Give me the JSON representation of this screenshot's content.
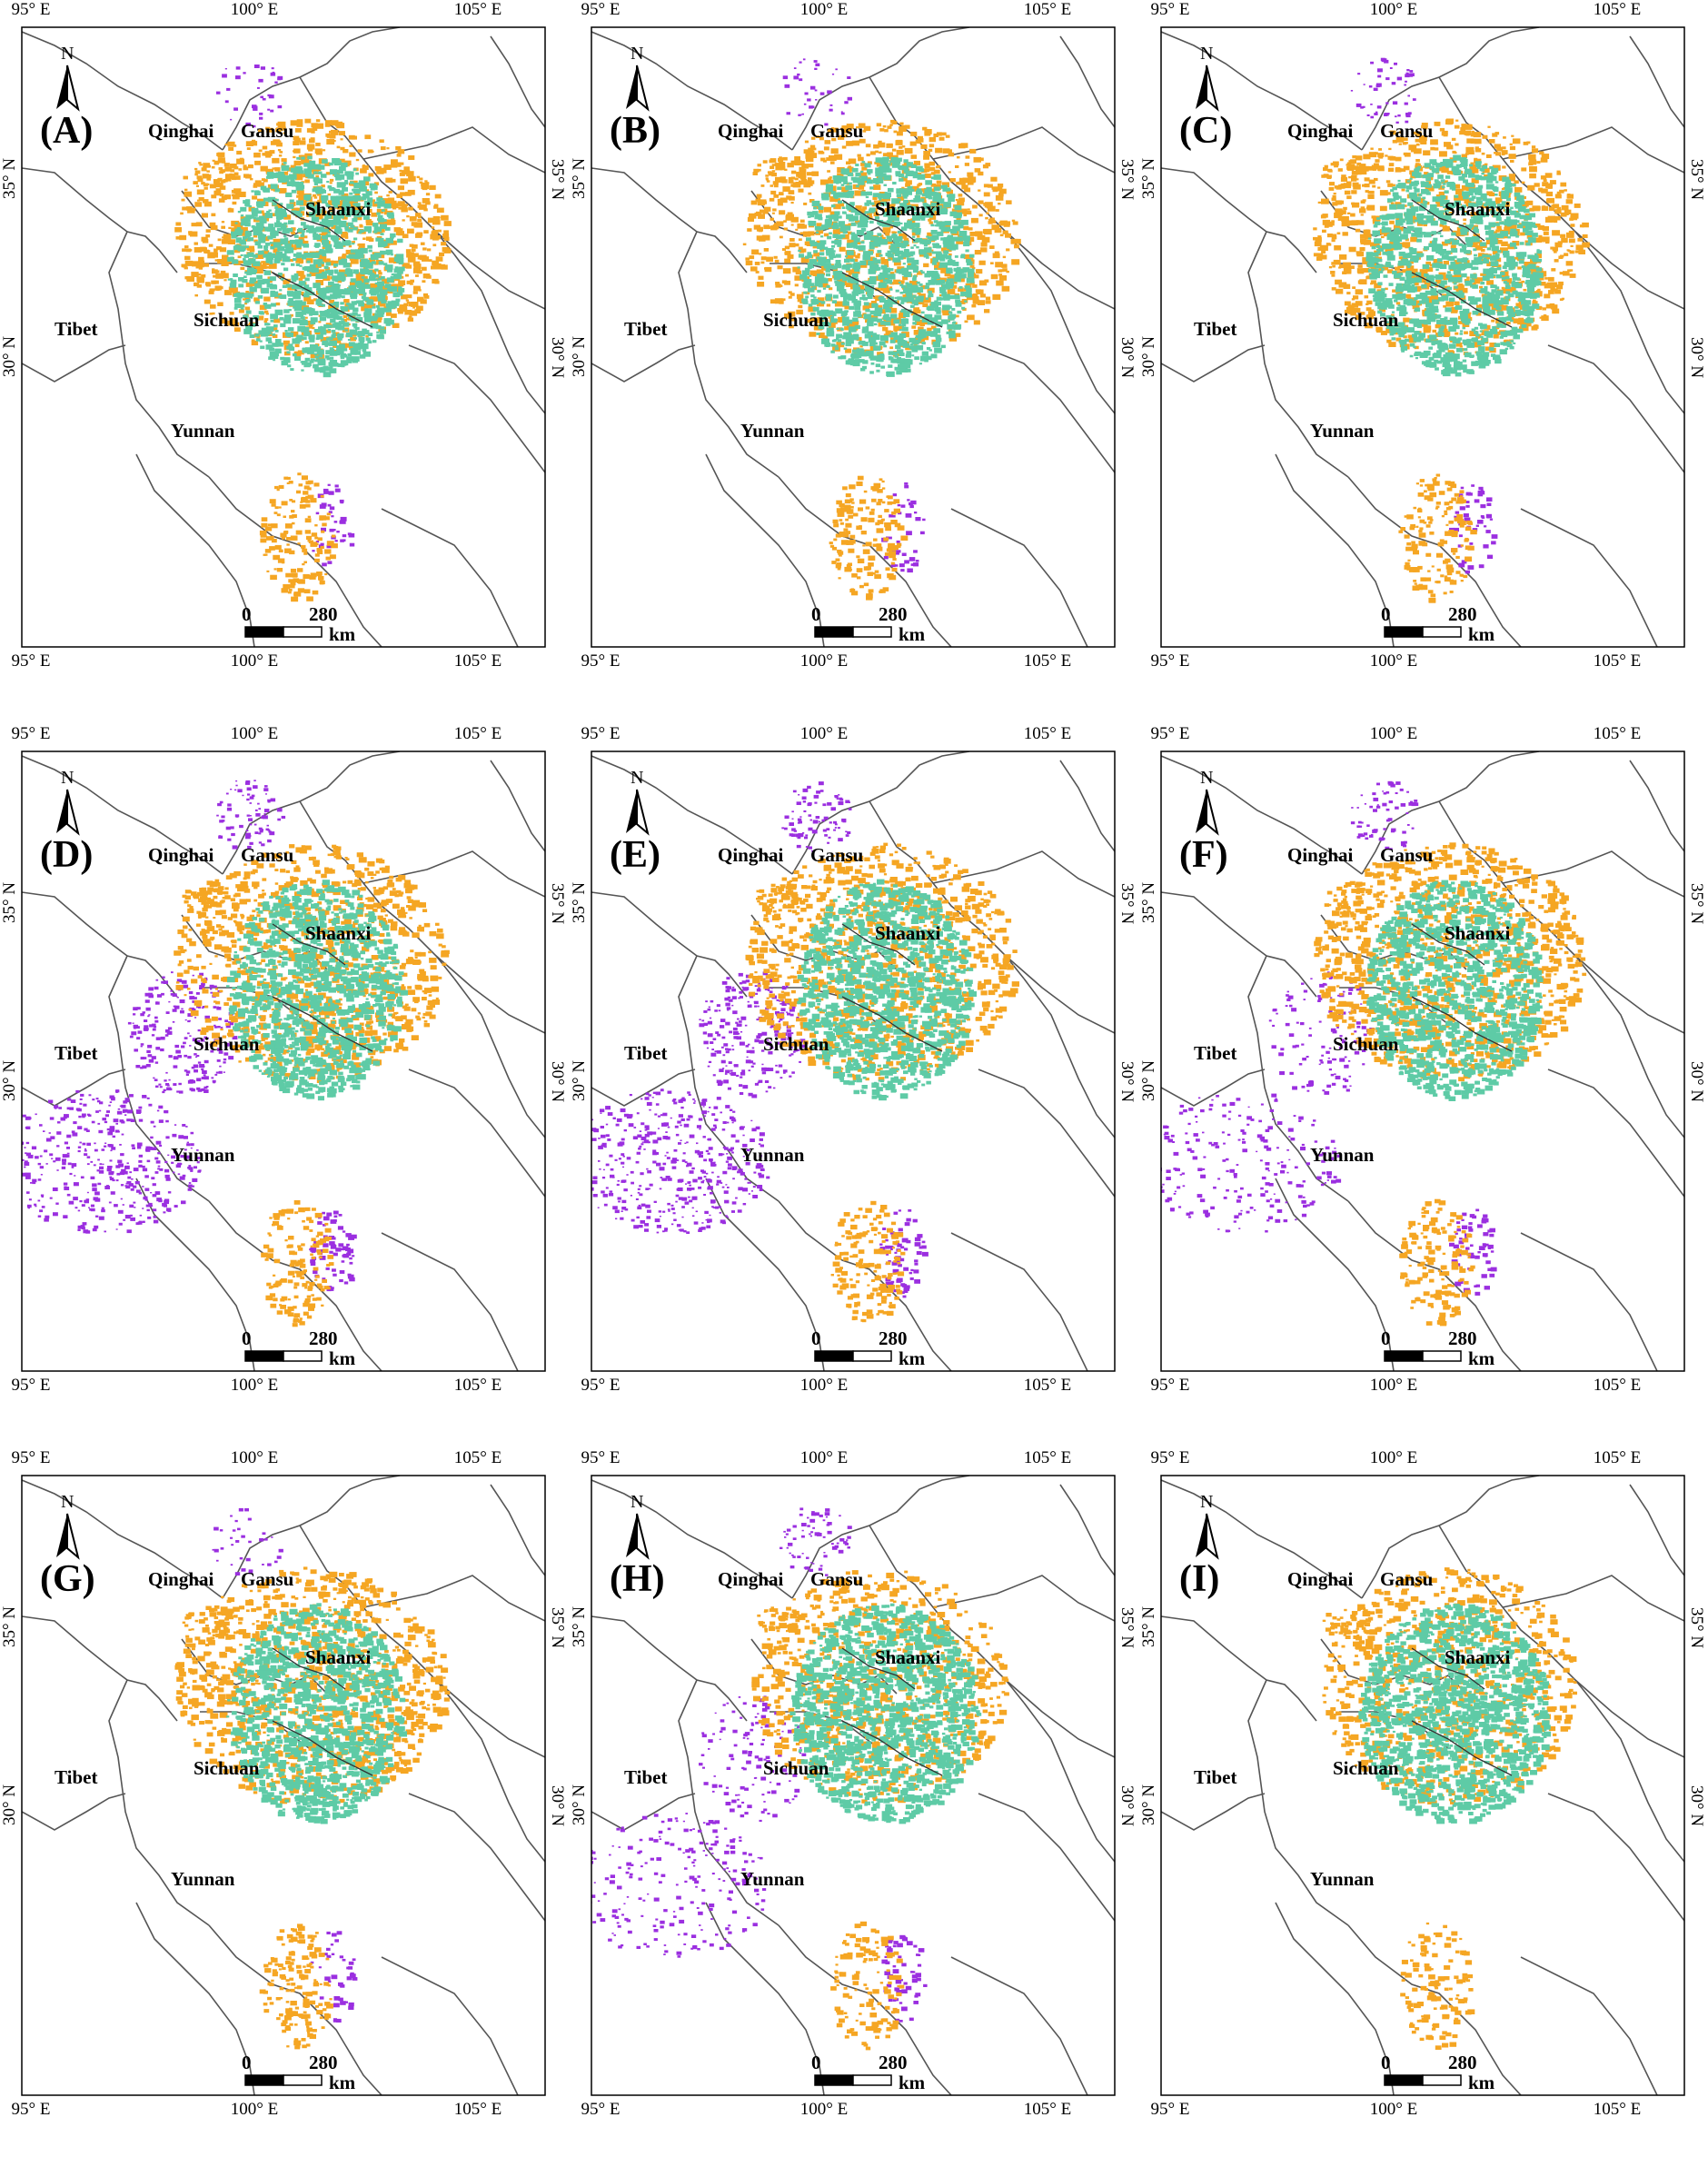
{
  "axes": {
    "lon_labels": [
      "95° E",
      "100° E",
      "105° E"
    ],
    "lat_labels": [
      "35° N",
      "30° N"
    ]
  },
  "provinces": [
    "Qinghai",
    "Gansu",
    "Shaanxi",
    "Tibet",
    "Sichuan",
    "Yunnan"
  ],
  "north_arrow": {
    "letter": "N",
    "icon": "north-arrow-icon"
  },
  "scale_bar": {
    "start": "0",
    "end": "280",
    "unit": "km"
  },
  "colors": {
    "orange": "#f5a623",
    "teal": "#5ecba6",
    "purple": "#9b2fe0",
    "boundary": "#555555",
    "frame": "#000000"
  },
  "panels": [
    {
      "label": "(A)",
      "purple_level": 1,
      "teal_level": 2,
      "orange_level": 2
    },
    {
      "label": "(B)",
      "purple_level": 1,
      "teal_level": 2,
      "orange_level": 2
    },
    {
      "label": "(C)",
      "purple_level": 2,
      "teal_level": 2,
      "orange_level": 2
    },
    {
      "label": "(D)",
      "purple_level": 4,
      "teal_level": 2,
      "orange_level": 2
    },
    {
      "label": "(E)",
      "purple_level": 4,
      "teal_level": 2,
      "orange_level": 2
    },
    {
      "label": "(F)",
      "purple_level": 3,
      "teal_level": 2,
      "orange_level": 2
    },
    {
      "label": "(G)",
      "purple_level": 1,
      "teal_level": 2,
      "orange_level": 2
    },
    {
      "label": "(H)",
      "purple_level": 3,
      "teal_level": 3,
      "orange_level": 1
    },
    {
      "label": "(I)",
      "purple_level": 0,
      "teal_level": 3,
      "orange_level": 1
    }
  ]
}
